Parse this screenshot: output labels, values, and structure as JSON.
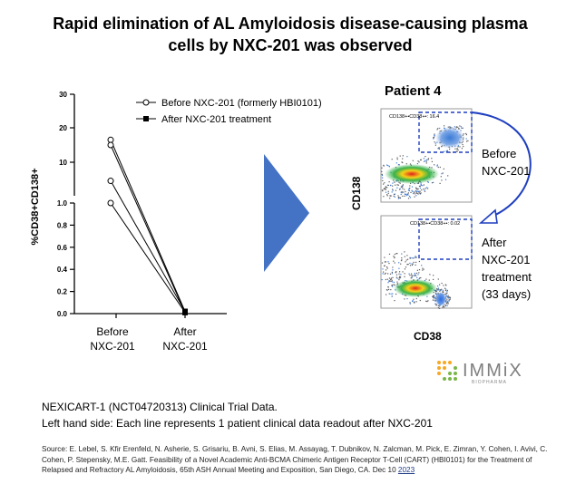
{
  "title_lines": [
    "Rapid elimination of AL Amyloidosis disease-causing plasma",
    "cells by NXC-201 was observed"
  ],
  "chart_data": {
    "type": "line",
    "title": "",
    "ylabel": "%CD38+CD138+",
    "xlabel": "",
    "categories": [
      "Before NXC-201",
      "After NXC-201"
    ],
    "category_lines": [
      [
        "Before",
        "NXC-201"
      ],
      [
        "After",
        "NXC-201"
      ]
    ],
    "y_axis_segments": [
      {
        "range": [
          0,
          1.0
        ],
        "ticks": [
          0.0,
          0.2,
          0.4,
          0.6,
          0.8,
          1.0
        ],
        "tick_labels": [
          "0.0",
          "0.2",
          "0.4",
          "0.6",
          "0.8",
          "1.0"
        ]
      },
      {
        "range": [
          1.0,
          30
        ],
        "ticks": [
          10,
          20,
          30
        ],
        "tick_labels": [
          "10",
          "20",
          "30"
        ]
      }
    ],
    "legend": [
      {
        "label": "Before NXC-201 (formerly HBI0101)",
        "marker": "open-circle"
      },
      {
        "label": "After NXC-201 treatment",
        "marker": "filled-square"
      }
    ],
    "legend_position": "top-right",
    "series": [
      {
        "values": [
          16.5,
          0.02
        ]
      },
      {
        "values": [
          15.0,
          0.01
        ]
      },
      {
        "values": [
          5.0,
          0.02
        ]
      },
      {
        "values": [
          1.0,
          0.01
        ]
      }
    ]
  },
  "flow": {
    "patient_title": "Patient 4",
    "y_axis_label": "CD138",
    "x_axis_label": "CD38",
    "top_gate_label": "CD138+•CD38+•: 16.4",
    "bottom_gate_label": "CD138+•CD38+•: 0.02",
    "before_label": [
      "Before",
      "NXC-201"
    ],
    "after_label": [
      "After",
      "NXC-201",
      "treatment",
      "(33 days)"
    ]
  },
  "logo": {
    "name": "IMMiX",
    "sub": "BIOPHARMA"
  },
  "trial_lines": [
    "NEXICART-1 (NCT04720313) Clinical Trial Data.",
    "Left hand side: Each line represents 1 patient clinical data readout after NXC-201"
  ],
  "source": {
    "text": "Source: E. Lebel, S. Kfir Erenfeld, N. Asherie, S. Grisariu, B. Avni, S. Elias, M. Assayag, T. Dubnikov, N. Zalcman, M. Pick, E. Zimran, Y. Cohen, I. Avivi, C. Cohen, P. Stepensky, M.E. Gatt. Feasibility of a Novel Academic Anti-BCMA Chimeric Antigen Receptor T-Cell (CART) (HBI0101) for the Treatment of Relapsed and Refractory AL Amyloidosis, 65th ASH Annual Meeting and Exposition, San Diego, CA. Dec 10 ",
    "year": "2023"
  },
  "colors": {
    "arrow": "#4472c4",
    "gate": "#1f3fbf",
    "logo_accent": "#f7a823",
    "logo_green": "#7ab648"
  }
}
